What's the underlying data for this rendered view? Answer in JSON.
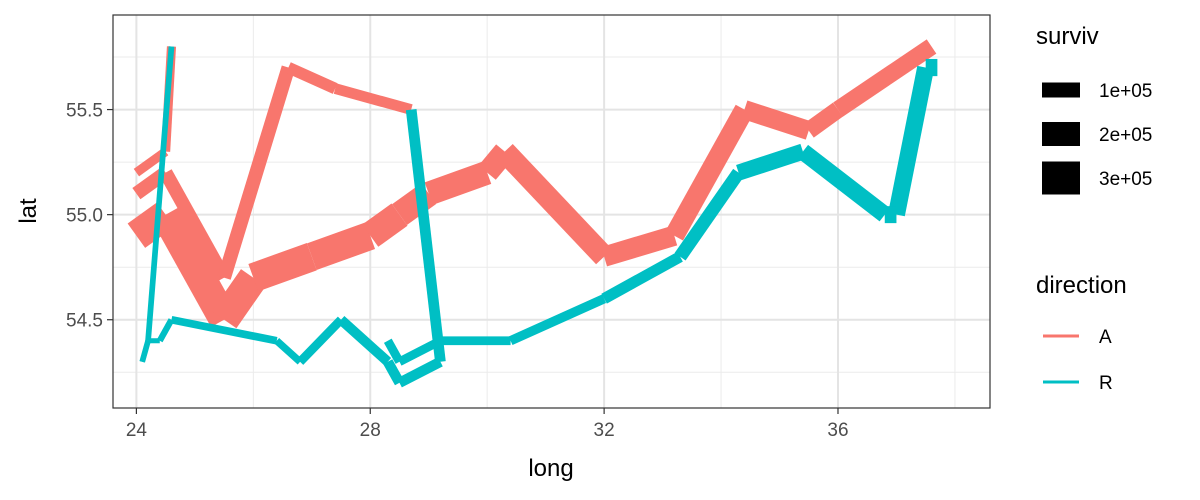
{
  "chart_data": {
    "type": "line",
    "xlabel": "long",
    "ylabel": "lat",
    "xlim": [
      23.6,
      38.6
    ],
    "ylim": [
      54.08,
      55.95
    ],
    "x_ticks": [
      24,
      28,
      32,
      36
    ],
    "x_tick_labels": [
      "24",
      "28",
      "32",
      "36"
    ],
    "y_ticks": [
      54.5,
      55.0,
      55.5
    ],
    "y_tick_labels": [
      "54.5",
      "55.0",
      "55.5"
    ],
    "x_minor_ticks": [
      26,
      30,
      34,
      38
    ],
    "y_minor_ticks": [
      54.25,
      54.75,
      55.25,
      55.75
    ],
    "grid": true,
    "legend_placement": "right",
    "size_legend": {
      "title": "surviv",
      "entries": [
        {
          "label": "1e+05",
          "value": 100000
        },
        {
          "label": "2e+05",
          "value": 200000
        },
        {
          "label": "3e+05",
          "value": 300000
        }
      ]
    },
    "color_legend": {
      "title": "direction",
      "entries": [
        {
          "label": "A",
          "color": "#F8766D"
        },
        {
          "label": "R",
          "color": "#00BFC4"
        }
      ]
    },
    "series": [
      {
        "direction": "A",
        "group": 1,
        "color": "#F8766D",
        "points": [
          {
            "long": 24.0,
            "lat": 54.9,
            "surviv": 340000
          },
          {
            "long": 24.5,
            "lat": 55.0,
            "surviv": 340000
          },
          {
            "long": 25.5,
            "lat": 54.5,
            "surviv": 340000
          },
          {
            "long": 26.0,
            "lat": 54.7,
            "surviv": 320000
          },
          {
            "long": 27.0,
            "lat": 54.8,
            "surviv": 300000
          },
          {
            "long": 28.0,
            "lat": 54.9,
            "surviv": 280000
          },
          {
            "long": 28.5,
            "lat": 55.0,
            "surviv": 240000
          },
          {
            "long": 29.0,
            "lat": 55.1,
            "surviv": 210000
          },
          {
            "long": 30.0,
            "lat": 55.2,
            "surviv": 180000
          },
          {
            "long": 30.3,
            "lat": 55.3,
            "surviv": 175000
          },
          {
            "long": 32.0,
            "lat": 54.8,
            "surviv": 145000
          },
          {
            "long": 33.2,
            "lat": 54.9,
            "surviv": 140000
          },
          {
            "long": 34.4,
            "lat": 55.5,
            "surviv": 127100
          },
          {
            "long": 35.5,
            "lat": 55.4,
            "surviv": 100000
          },
          {
            "long": 36.0,
            "lat": 55.5,
            "surviv": 100000
          },
          {
            "long": 37.6,
            "lat": 55.8,
            "surviv": 100000
          }
        ]
      },
      {
        "direction": "R",
        "group": 1,
        "color": "#00BFC4",
        "points": [
          {
            "long": 37.7,
            "lat": 55.7,
            "surviv": 100000
          },
          {
            "long": 37.5,
            "lat": 55.7,
            "surviv": 98000
          },
          {
            "long": 37.0,
            "lat": 55.0,
            "surviv": 97000
          },
          {
            "long": 36.8,
            "lat": 55.0,
            "surviv": 96000
          },
          {
            "long": 35.4,
            "lat": 55.3,
            "surviv": 87000
          },
          {
            "long": 34.3,
            "lat": 55.2,
            "surviv": 55000
          },
          {
            "long": 33.3,
            "lat": 54.8,
            "surviv": 37000
          },
          {
            "long": 32.0,
            "lat": 54.6,
            "surviv": 24000
          },
          {
            "long": 30.4,
            "lat": 54.4,
            "surviv": 20000
          },
          {
            "long": 29.2,
            "lat": 54.4,
            "surviv": 20000
          },
          {
            "long": 28.5,
            "lat": 54.3,
            "surviv": 20000
          },
          {
            "long": 28.3,
            "lat": 54.4,
            "surviv": 20000
          }
        ]
      },
      {
        "direction": "A",
        "group": 2,
        "color": "#F8766D",
        "points": [
          {
            "long": 24.0,
            "lat": 55.1,
            "surviv": 60000
          },
          {
            "long": 24.5,
            "lat": 55.2,
            "surviv": 60000
          },
          {
            "long": 25.5,
            "lat": 54.7,
            "surviv": 60000
          },
          {
            "long": 26.6,
            "lat": 55.7,
            "surviv": 40000
          },
          {
            "long": 27.4,
            "lat": 55.6,
            "surviv": 33000
          },
          {
            "long": 28.7,
            "lat": 55.5,
            "surviv": 33000
          }
        ]
      },
      {
        "direction": "R",
        "group": 2,
        "color": "#00BFC4",
        "points": [
          {
            "long": 28.7,
            "lat": 55.5,
            "surviv": 33000
          },
          {
            "long": 29.2,
            "lat": 54.3,
            "surviv": 30000
          },
          {
            "long": 28.5,
            "lat": 54.2,
            "surviv": 30000
          },
          {
            "long": 28.3,
            "lat": 54.3,
            "surviv": 28000
          },
          {
            "long": 27.5,
            "lat": 54.5,
            "surviv": 20000
          },
          {
            "long": 26.8,
            "lat": 54.3,
            "surviv": 12000
          },
          {
            "long": 26.4,
            "lat": 54.4,
            "surviv": 14000
          },
          {
            "long": 24.6,
            "lat": 54.5,
            "surviv": 8000
          },
          {
            "long": 24.4,
            "lat": 54.4,
            "surviv": 4000
          },
          {
            "long": 24.2,
            "lat": 54.4,
            "surviv": 4000
          },
          {
            "long": 24.1,
            "lat": 54.3,
            "surviv": 4000
          }
        ]
      },
      {
        "direction": "A",
        "group": 3,
        "color": "#F8766D",
        "points": [
          {
            "long": 24.0,
            "lat": 55.2,
            "surviv": 22000
          },
          {
            "long": 24.5,
            "lat": 55.3,
            "surviv": 22000
          },
          {
            "long": 24.6,
            "lat": 55.8,
            "surviv": 6000
          }
        ]
      },
      {
        "direction": "R",
        "group": 3,
        "color": "#00BFC4",
        "points": [
          {
            "long": 24.6,
            "lat": 55.8,
            "surviv": 6000
          },
          {
            "long": 24.2,
            "lat": 54.4,
            "surviv": 6000
          },
          {
            "long": 24.1,
            "lat": 54.3,
            "surviv": 6000
          }
        ]
      }
    ]
  }
}
